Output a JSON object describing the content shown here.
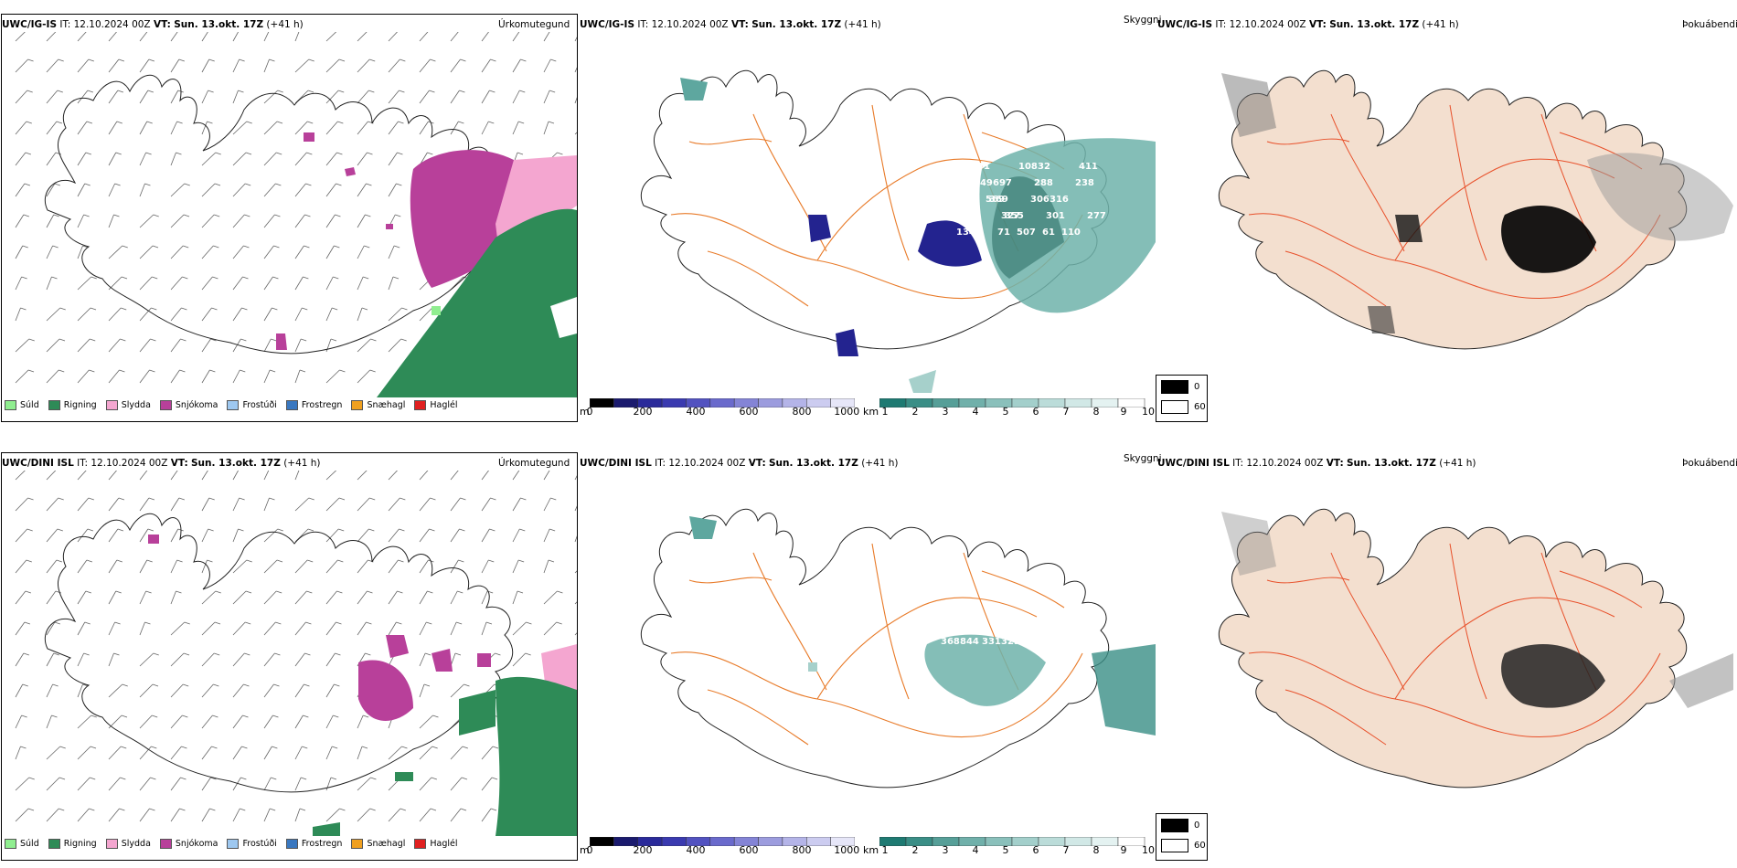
{
  "rows": [
    {
      "model": "UWC/IG-IS",
      "it_label": "IT:",
      "it_value": "12.10.2024 00Z",
      "vt_label": "VT:",
      "vt_value": "Sun. 13.okt. 17Z",
      "lead": "(+41 h)",
      "precip_title": "Úrkomutegund",
      "cloud_title": "Skyggni",
      "fog_title": "Þokuábendi",
      "cloud_labels": [
        "104",
        "41",
        "108",
        "32",
        "411",
        "349",
        "697",
        "288",
        "238",
        "373",
        "369",
        "306",
        "316",
        "265",
        "569",
        "355",
        "301",
        "277",
        "395",
        "327",
        "61",
        "110",
        "134",
        "71",
        "507"
      ]
    },
    {
      "model": "UWC/DINI ISL",
      "it_label": "IT:",
      "it_value": "12.10.2024 00Z",
      "vt_label": "VT:",
      "vt_value": "Sun. 13.okt. 17Z",
      "lead": "(+41 h)",
      "precip_title": "Úrkomutegund",
      "cloud_title": "Skyggni",
      "fog_title": "Þokuábendi",
      "cloud_labels": [
        "368",
        "331",
        "37",
        "844",
        "329"
      ]
    }
  ],
  "precip_legend": [
    {
      "label": "Súld",
      "color": "#90ee90"
    },
    {
      "label": "Rigning",
      "color": "#2e8b57"
    },
    {
      "label": "Slydda",
      "color": "#f4a6d0"
    },
    {
      "label": "Snjókoma",
      "color": "#b8409a"
    },
    {
      "label": "Frostúði",
      "color": "#9ec8f0"
    },
    {
      "label": "Frostregn",
      "color": "#3a78c0"
    },
    {
      "label": "Snæhagl",
      "color": "#f0a020"
    },
    {
      "label": "Haglél",
      "color": "#e02020"
    }
  ],
  "height_bar": {
    "unit": "m",
    "ticks": [
      "0",
      "200",
      "400",
      "600",
      "800",
      "1000"
    ],
    "colors": [
      "#000000",
      "#1a1a6e",
      "#2a2a9a",
      "#3a3ab0",
      "#5252c0",
      "#6a6acc",
      "#8484d6",
      "#9c9cde",
      "#b4b4e8",
      "#ccccf0",
      "#e6e6f8"
    ]
  },
  "vis_bar": {
    "unit": "km",
    "ticks": [
      "1",
      "2",
      "3",
      "4",
      "5",
      "6",
      "7",
      "8",
      "9",
      "10"
    ],
    "colors": [
      "#1e7a72",
      "#3a8e86",
      "#569f98",
      "#70b0aa",
      "#8ac0bb",
      "#a3cfcb",
      "#bbdcd9",
      "#d1e8e6",
      "#e4f2f1",
      "#ffffff"
    ]
  },
  "fog_legend": [
    {
      "label": "0",
      "color": "#000000"
    },
    {
      "label": "60",
      "color": "#ffffff"
    }
  ],
  "colors": {
    "snow": "#b8409a",
    "rain": "#2e8b57",
    "sleet": "#f4a6d0",
    "drizzle": "#90ee90",
    "road": "#e87a28",
    "landfog": "#f3dfcf",
    "river": "#8aa0f0",
    "cloudnavy": "#23238f",
    "cloudteal": "#5ea79f"
  }
}
